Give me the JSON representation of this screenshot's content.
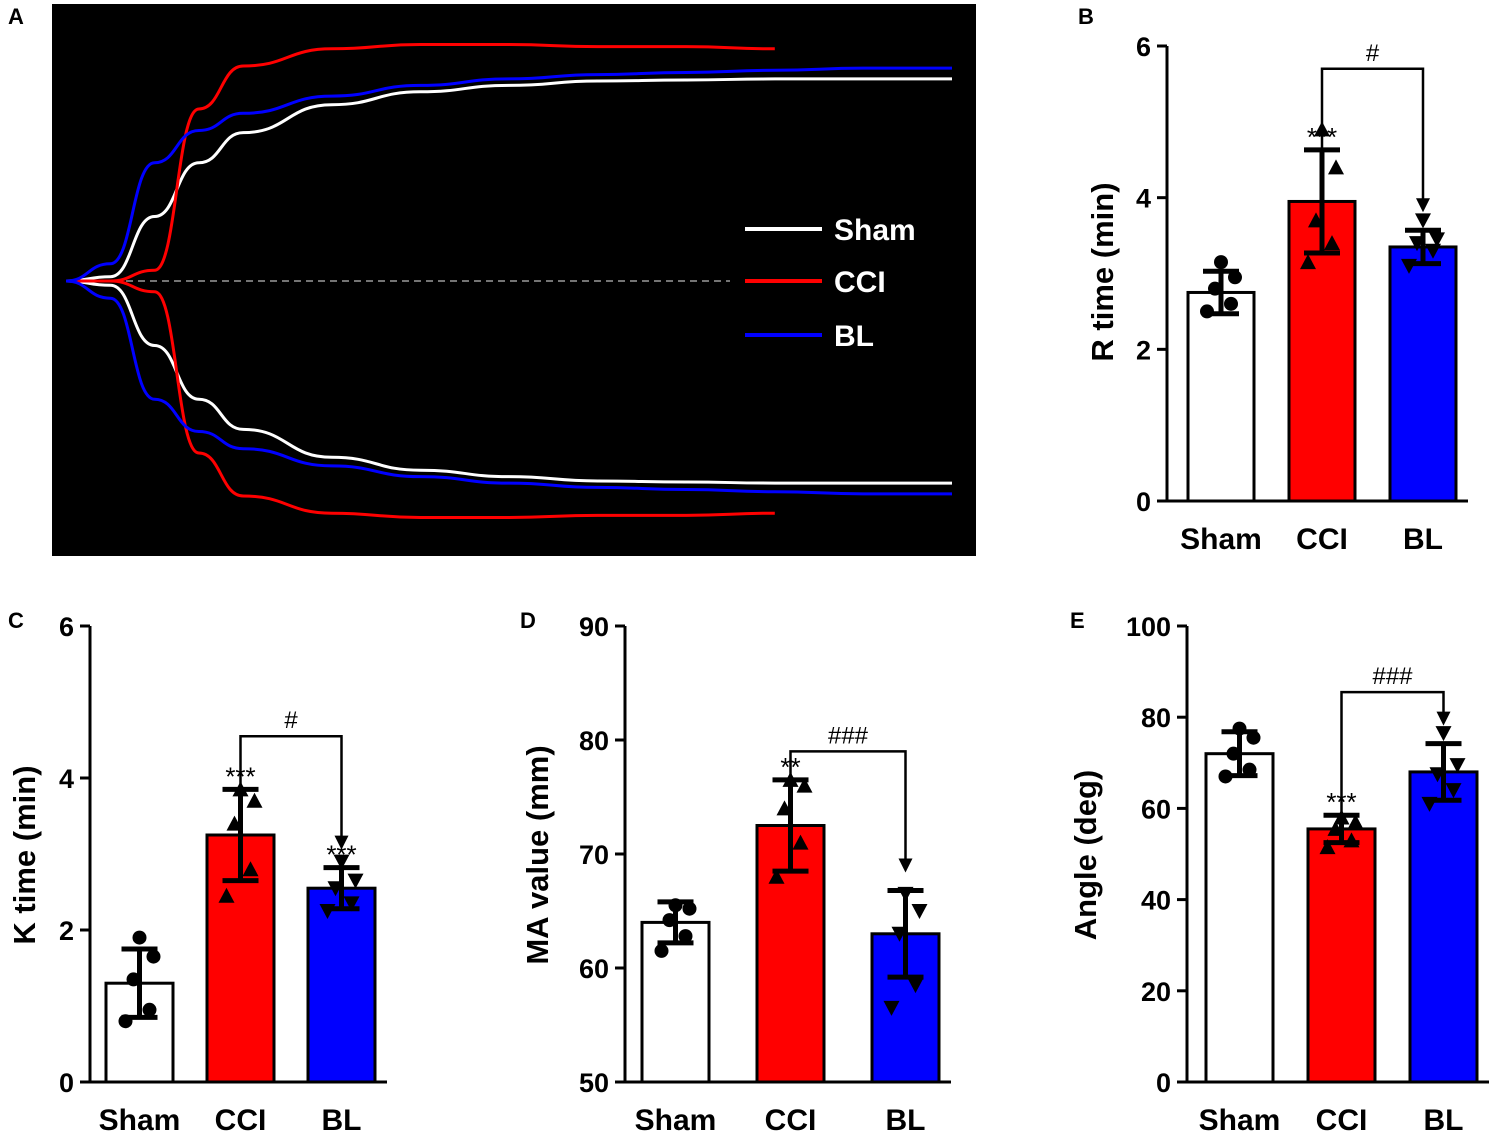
{
  "colors": {
    "sham": "#ffffff",
    "cci": "#ff0000",
    "bl": "#0000ff",
    "background_a": "#000000",
    "axis": "#000000",
    "baseline": "#9a9a9a"
  },
  "chart_data": [
    {
      "panel": "A",
      "type": "line",
      "title": "",
      "description_legend": [
        "Sham",
        "CCI",
        "BL"
      ],
      "xlabel": "",
      "ylabel": "",
      "grid": false,
      "legend_position": "right-center",
      "x": [
        0,
        0.05,
        0.1,
        0.15,
        0.2,
        0.3,
        0.4,
        0.5,
        0.6,
        0.7,
        0.8,
        0.9,
        1.0
      ],
      "series": [
        {
          "name": "Sham",
          "color_key": "sham",
          "upper": [
            0,
            0.02,
            0.3,
            0.55,
            0.69,
            0.82,
            0.88,
            0.91,
            0.93,
            0.935,
            0.94,
            0.94,
            0.94
          ],
          "lower": [
            0,
            -0.02,
            -0.3,
            -0.55,
            -0.69,
            -0.82,
            -0.88,
            -0.91,
            -0.93,
            -0.935,
            -0.94,
            -0.94,
            -0.94
          ]
        },
        {
          "name": "CCI",
          "color_key": "cci",
          "upper": [
            0,
            0.0,
            0.05,
            0.8,
            1.0,
            1.08,
            1.1,
            1.1,
            1.09,
            1.09,
            1.08,
            null,
            null
          ],
          "lower": [
            0,
            0.0,
            -0.05,
            -0.8,
            -1.0,
            -1.08,
            -1.1,
            -1.1,
            -1.09,
            -1.09,
            -1.08,
            null,
            null
          ]
        },
        {
          "name": "BL",
          "color_key": "bl",
          "upper": [
            0,
            0.08,
            0.55,
            0.7,
            0.78,
            0.86,
            0.91,
            0.94,
            0.96,
            0.97,
            0.98,
            0.99,
            0.99
          ],
          "lower": [
            0,
            -0.08,
            -0.55,
            -0.7,
            -0.78,
            -0.86,
            -0.91,
            -0.94,
            -0.96,
            -0.97,
            -0.98,
            -0.99,
            -0.99
          ]
        }
      ]
    },
    {
      "panel": "B",
      "type": "bar",
      "title": "",
      "xlabel": "",
      "ylabel": "R time (min)",
      "ylim": [
        0,
        6
      ],
      "yticks": [
        "0",
        "2",
        "4",
        "6"
      ],
      "categories": [
        "Sham",
        "CCI",
        "BL"
      ],
      "values": [
        2.75,
        3.95,
        3.35
      ],
      "errors": [
        0.28,
        0.68,
        0.22
      ],
      "points": [
        [
          2.5,
          2.6,
          2.8,
          2.95,
          3.15
        ],
        [
          3.15,
          3.4,
          3.7,
          4.4,
          4.9
        ],
        [
          3.1,
          3.3,
          3.4,
          3.45,
          3.7
        ]
      ],
      "markers": [
        "circle",
        "triangle-up",
        "triangle-down"
      ],
      "annotations": [
        {
          "text": "***",
          "category": "CCI"
        }
      ],
      "brackets": [
        {
          "from": "CCI",
          "to": "BL",
          "text": "#",
          "y": 5.7
        }
      ]
    },
    {
      "panel": "C",
      "type": "bar",
      "title": "",
      "xlabel": "",
      "ylabel": "K time (min)",
      "ylim": [
        0,
        6
      ],
      "yticks": [
        "0",
        "2",
        "4",
        "6"
      ],
      "categories": [
        "Sham",
        "CCI",
        "BL"
      ],
      "values": [
        1.3,
        3.25,
        2.55
      ],
      "errors": [
        0.45,
        0.6,
        0.27
      ],
      "points": [
        [
          0.8,
          0.95,
          1.35,
          1.65,
          1.9
        ],
        [
          2.45,
          2.8,
          3.4,
          3.7,
          3.85
        ],
        [
          2.25,
          2.35,
          2.55,
          2.65,
          2.9
        ]
      ],
      "markers": [
        "circle",
        "triangle-up",
        "triangle-down"
      ],
      "annotations": [
        {
          "text": "***",
          "category": "CCI"
        },
        {
          "text": "***",
          "category": "BL"
        }
      ],
      "brackets": [
        {
          "from": "CCI",
          "to": "BL",
          "text": "#",
          "y": 4.55
        }
      ]
    },
    {
      "panel": "D",
      "type": "bar",
      "title": "",
      "xlabel": "",
      "ylabel": "MA value (mm)",
      "ylim": [
        50,
        90
      ],
      "yticks": [
        "50",
        "60",
        "70",
        "80",
        "90"
      ],
      "categories": [
        "Sham",
        "CCI",
        "BL"
      ],
      "values": [
        64.0,
        72.5,
        63.0
      ],
      "errors": [
        1.8,
        4.0,
        3.8
      ],
      "points": [
        [
          61.5,
          62.8,
          64.2,
          65.2,
          65.5
        ],
        [
          68.0,
          71.0,
          74.0,
          76.0,
          76.5
        ],
        [
          56.5,
          58.5,
          63.0,
          65.0,
          66.5
        ]
      ],
      "markers": [
        "circle",
        "triangle-up",
        "triangle-down"
      ],
      "annotations": [
        {
          "text": "**",
          "category": "CCI"
        }
      ],
      "brackets": [
        {
          "from": "CCI",
          "to": "BL",
          "text": "###",
          "y": 79.0
        }
      ]
    },
    {
      "panel": "E",
      "type": "bar",
      "title": "",
      "xlabel": "",
      "ylabel": "Angle (deg)",
      "ylim": [
        0,
        100
      ],
      "yticks": [
        "0",
        "20",
        "40",
        "60",
        "80",
        "100"
      ],
      "categories": [
        "Sham",
        "CCI",
        "BL"
      ],
      "values": [
        72.0,
        55.5,
        68.0
      ],
      "errors": [
        4.8,
        3.0,
        6.2
      ],
      "points": [
        [
          67.0,
          68.5,
          72.0,
          75.5,
          77.5
        ],
        [
          51.5,
          53.0,
          55.5,
          57.0,
          58.0
        ],
        [
          61.0,
          64.0,
          67.5,
          69.5,
          76.5
        ]
      ],
      "markers": [
        "circle",
        "triangle-up",
        "triangle-down"
      ],
      "annotations": [
        {
          "text": "***",
          "category": "CCI"
        }
      ],
      "brackets": [
        {
          "from": "CCI",
          "to": "BL",
          "text": "###",
          "y": 85.5
        }
      ]
    }
  ]
}
